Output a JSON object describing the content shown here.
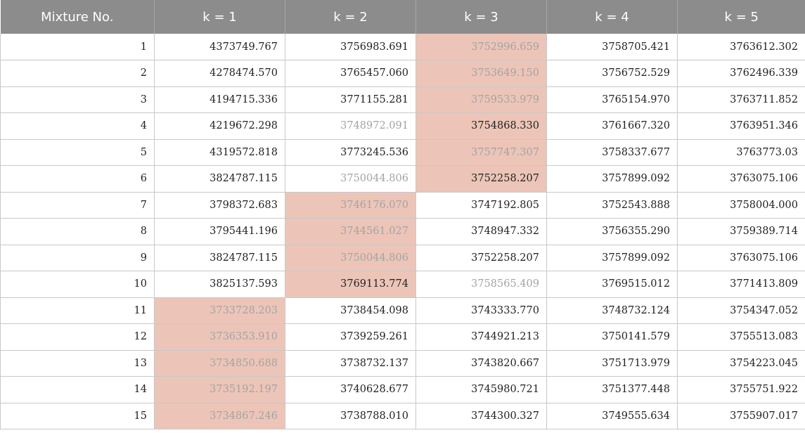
{
  "columns": [
    "Mixture No.",
    "k = 1",
    "k = 2",
    "k = 3",
    "k = 4",
    "k = 5"
  ],
  "highlight_color": "#ecc5b8",
  "dim_text_color": "#a3a3a3",
  "rows": [
    {
      "no": "1",
      "values": [
        "4373749.767",
        "3756983.691",
        "3752996.659",
        "3758705.421",
        "3763612.302"
      ],
      "highlight": [
        3
      ],
      "dim": [
        3
      ]
    },
    {
      "no": "2",
      "values": [
        "4278474.570",
        "3765457.060",
        "3753649.150",
        "3756752.529",
        "3762496.339"
      ],
      "highlight": [
        3
      ],
      "dim": [
        3
      ]
    },
    {
      "no": "3",
      "values": [
        "4194715.336",
        "3771155.281",
        "3759533.979",
        "3765154.970",
        "3763711.852"
      ],
      "highlight": [
        3
      ],
      "dim": [
        3
      ]
    },
    {
      "no": "4",
      "values": [
        "4219672.298",
        "3748972.091",
        "3754868.330",
        "3761667.320",
        "3763951.346"
      ],
      "highlight": [
        3
      ],
      "dim": [
        2
      ]
    },
    {
      "no": "5",
      "values": [
        "4319572.818",
        "3773245.536",
        "3757747.307",
        "3758337.677",
        "3763773.03"
      ],
      "highlight": [
        3
      ],
      "dim": [
        3
      ]
    },
    {
      "no": "6",
      "values": [
        "3824787.115",
        "3750044.806",
        "3752258.207",
        "3757899.092",
        "3763075.106"
      ],
      "highlight": [
        3
      ],
      "dim": [
        2
      ]
    },
    {
      "no": "7",
      "values": [
        "3798372.683",
        "3746176.070",
        "3747192.805",
        "3752543.888",
        "3758004.000"
      ],
      "highlight": [
        2
      ],
      "dim": [
        2
      ]
    },
    {
      "no": "8",
      "values": [
        "3795441.196",
        "3744561.027",
        "3748947.332",
        "3756355.290",
        "3759389.714"
      ],
      "highlight": [
        2
      ],
      "dim": [
        2
      ]
    },
    {
      "no": "9",
      "values": [
        "3824787.115",
        "3750044.806",
        "3752258.207",
        "3757899.092",
        "3763075.106"
      ],
      "highlight": [
        2
      ],
      "dim": [
        2
      ]
    },
    {
      "no": "10",
      "values": [
        "3825137.593",
        "3769113.774",
        "3758565.409",
        "3769515.012",
        "3771413.809"
      ],
      "highlight": [
        2
      ],
      "dim": [
        3
      ]
    },
    {
      "no": "11",
      "values": [
        "3733728.203",
        "3738454.098",
        "3743333.770",
        "3748732.124",
        "3754347.052"
      ],
      "highlight": [
        1
      ],
      "dim": [
        1
      ]
    },
    {
      "no": "12",
      "values": [
        "3736353.910",
        "3739259.261",
        "3744921.213",
        "3750141.579",
        "3755513.083"
      ],
      "highlight": [
        1
      ],
      "dim": [
        1
      ]
    },
    {
      "no": "13",
      "values": [
        "3734850.688",
        "3738732.137",
        "3743820.667",
        "3751713.979",
        "3754223.045"
      ],
      "highlight": [
        1
      ],
      "dim": [
        1
      ]
    },
    {
      "no": "14",
      "values": [
        "3735192.197",
        "3740628.677",
        "3745980.721",
        "3751377.448",
        "3755751.922"
      ],
      "highlight": [
        1
      ],
      "dim": [
        1
      ]
    },
    {
      "no": "15",
      "values": [
        "3734867.246",
        "3738788.010",
        "3744300.327",
        "3749555.634",
        "3755907.017"
      ],
      "highlight": [
        1
      ],
      "dim": [
        1
      ]
    }
  ]
}
